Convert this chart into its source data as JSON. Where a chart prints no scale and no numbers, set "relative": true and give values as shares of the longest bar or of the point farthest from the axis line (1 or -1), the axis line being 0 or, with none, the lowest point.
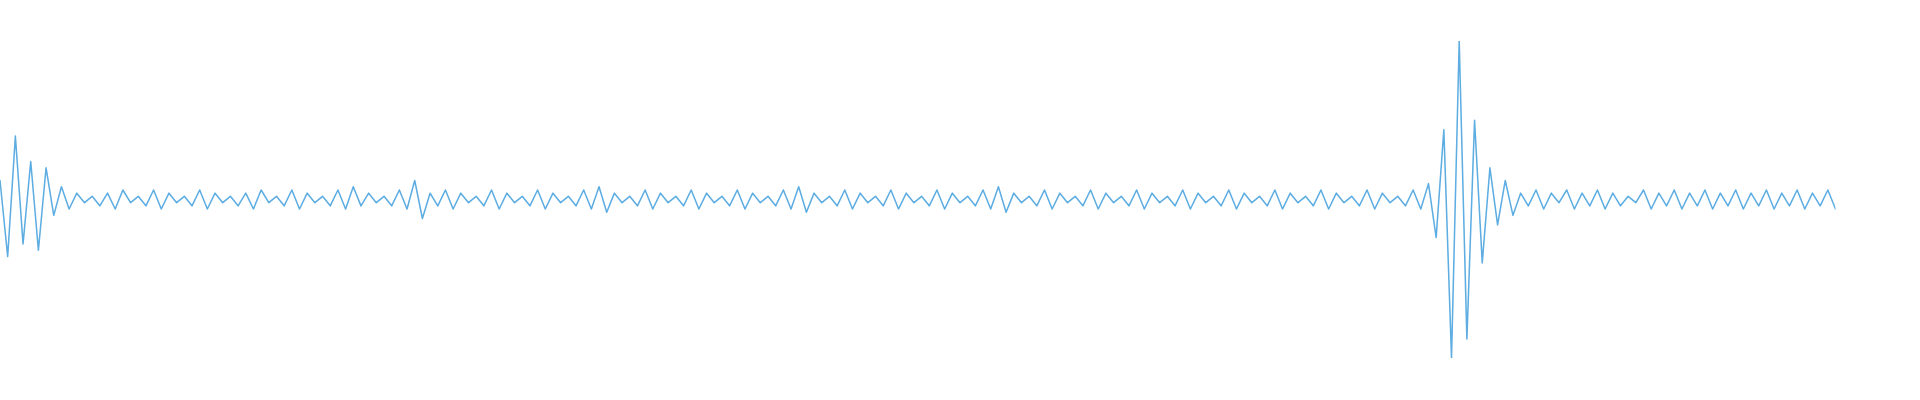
{
  "chart_data": {
    "type": "line",
    "relative": true,
    "grid": false,
    "categories": [
      null,
      null,
      null,
      null,
      null,
      null,
      null,
      null,
      null,
      null,
      null,
      null,
      null,
      null,
      null,
      null,
      null,
      null,
      null,
      null,
      null,
      null,
      null,
      null,
      null,
      null,
      null,
      null,
      null,
      null,
      null,
      null,
      null,
      null,
      null,
      null,
      null,
      null,
      null,
      null,
      null,
      null,
      null,
      null,
      null,
      null,
      null,
      null,
      null,
      null,
      null,
      null,
      null,
      null,
      null,
      null,
      null,
      null,
      null,
      null,
      null,
      null,
      null,
      null,
      null,
      null,
      null,
      null,
      null,
      null,
      null,
      null,
      null,
      null,
      null,
      null,
      null,
      null,
      null,
      null,
      null,
      null,
      null,
      null,
      null,
      null,
      null,
      null,
      null,
      null,
      null,
      null,
      null,
      null,
      null,
      null,
      null,
      null,
      null,
      null,
      null,
      null,
      null,
      null,
      null,
      null,
      null,
      null,
      null,
      null,
      null,
      null,
      null,
      null,
      null,
      null,
      null,
      null,
      null,
      null,
      null,
      null,
      null,
      null,
      null,
      null,
      null,
      null,
      null,
      null,
      null,
      null,
      null,
      null,
      null,
      null,
      null,
      null,
      null,
      null,
      null,
      null,
      null,
      null,
      null,
      null,
      null,
      null,
      null,
      null,
      null,
      null,
      null,
      null,
      null,
      null,
      null,
      null,
      null,
      null,
      null,
      null,
      null,
      null,
      null,
      null,
      null,
      null,
      null,
      null,
      null,
      null,
      null,
      null,
      null,
      null,
      null,
      null,
      null,
      null,
      null,
      null,
      null,
      null,
      null,
      null,
      null,
      null,
      null,
      null,
      null,
      null,
      null,
      null,
      null,
      null,
      null,
      null,
      null,
      null,
      null,
      null,
      null,
      null,
      null,
      null,
      null,
      null,
      null,
      null,
      null,
      null,
      null,
      null,
      null,
      null,
      null,
      null,
      null,
      null,
      null,
      null,
      null,
      null,
      null,
      null,
      null,
      null,
      null,
      null,
      null,
      null,
      null,
      null,
      null,
      null,
      null,
      null,
      null,
      null
    ],
    "series": [
      {
        "color": "#5dade2",
        "values": [
          0.56,
          0.32,
          0.7,
          0.36,
          0.62,
          0.34,
          0.6,
          0.45,
          0.54,
          0.47,
          0.52,
          0.49,
          0.51,
          0.48,
          0.52,
          0.47,
          0.53,
          0.49,
          0.51,
          0.48,
          0.53,
          0.47,
          0.52,
          0.49,
          0.51,
          0.48,
          0.53,
          0.47,
          0.52,
          0.49,
          0.51,
          0.48,
          0.52,
          0.47,
          0.53,
          0.49,
          0.51,
          0.48,
          0.53,
          0.47,
          0.52,
          0.49,
          0.51,
          0.48,
          0.53,
          0.47,
          0.54,
          0.48,
          0.52,
          0.49,
          0.51,
          0.48,
          0.53,
          0.47,
          0.56,
          0.44,
          0.52,
          0.48,
          0.53,
          0.47,
          0.52,
          0.49,
          0.51,
          0.48,
          0.53,
          0.47,
          0.52,
          0.49,
          0.51,
          0.48,
          0.53,
          0.47,
          0.52,
          0.49,
          0.51,
          0.48,
          0.53,
          0.47,
          0.54,
          0.46,
          0.52,
          0.49,
          0.51,
          0.48,
          0.53,
          0.47,
          0.52,
          0.49,
          0.51,
          0.48,
          0.53,
          0.47,
          0.52,
          0.49,
          0.51,
          0.48,
          0.53,
          0.47,
          0.52,
          0.49,
          0.51,
          0.48,
          0.53,
          0.47,
          0.54,
          0.46,
          0.52,
          0.49,
          0.51,
          0.48,
          0.53,
          0.47,
          0.52,
          0.49,
          0.51,
          0.48,
          0.53,
          0.47,
          0.52,
          0.49,
          0.51,
          0.48,
          0.53,
          0.47,
          0.52,
          0.49,
          0.51,
          0.48,
          0.53,
          0.47,
          0.54,
          0.46,
          0.52,
          0.49,
          0.51,
          0.48,
          0.53,
          0.47,
          0.52,
          0.49,
          0.51,
          0.48,
          0.53,
          0.47,
          0.52,
          0.49,
          0.51,
          0.48,
          0.53,
          0.47,
          0.52,
          0.49,
          0.51,
          0.48,
          0.53,
          0.47,
          0.52,
          0.49,
          0.51,
          0.48,
          0.53,
          0.47,
          0.52,
          0.49,
          0.51,
          0.48,
          0.53,
          0.47,
          0.52,
          0.49,
          0.51,
          0.48,
          0.53,
          0.47,
          0.52,
          0.49,
          0.51,
          0.48,
          0.53,
          0.47,
          0.52,
          0.49,
          0.51,
          0.48,
          0.53,
          0.47,
          0.55,
          0.38,
          0.72,
          0.0,
          1.0,
          0.06,
          0.75,
          0.3,
          0.6,
          0.42,
          0.56,
          0.45,
          0.52,
          0.48,
          0.53,
          0.47,
          0.52,
          0.49,
          0.53,
          0.47,
          0.52,
          0.48,
          0.53,
          0.47,
          0.52,
          0.48,
          0.51,
          0.49,
          0.53,
          0.47,
          0.52,
          0.48,
          0.53,
          0.47,
          0.52,
          0.48,
          0.53,
          0.47,
          0.52,
          0.48,
          0.53,
          0.47,
          0.52,
          0.48,
          0.53,
          0.47,
          0.52,
          0.48,
          0.53,
          0.47,
          0.52,
          0.48,
          0.53,
          0.47
        ]
      }
    ]
  }
}
